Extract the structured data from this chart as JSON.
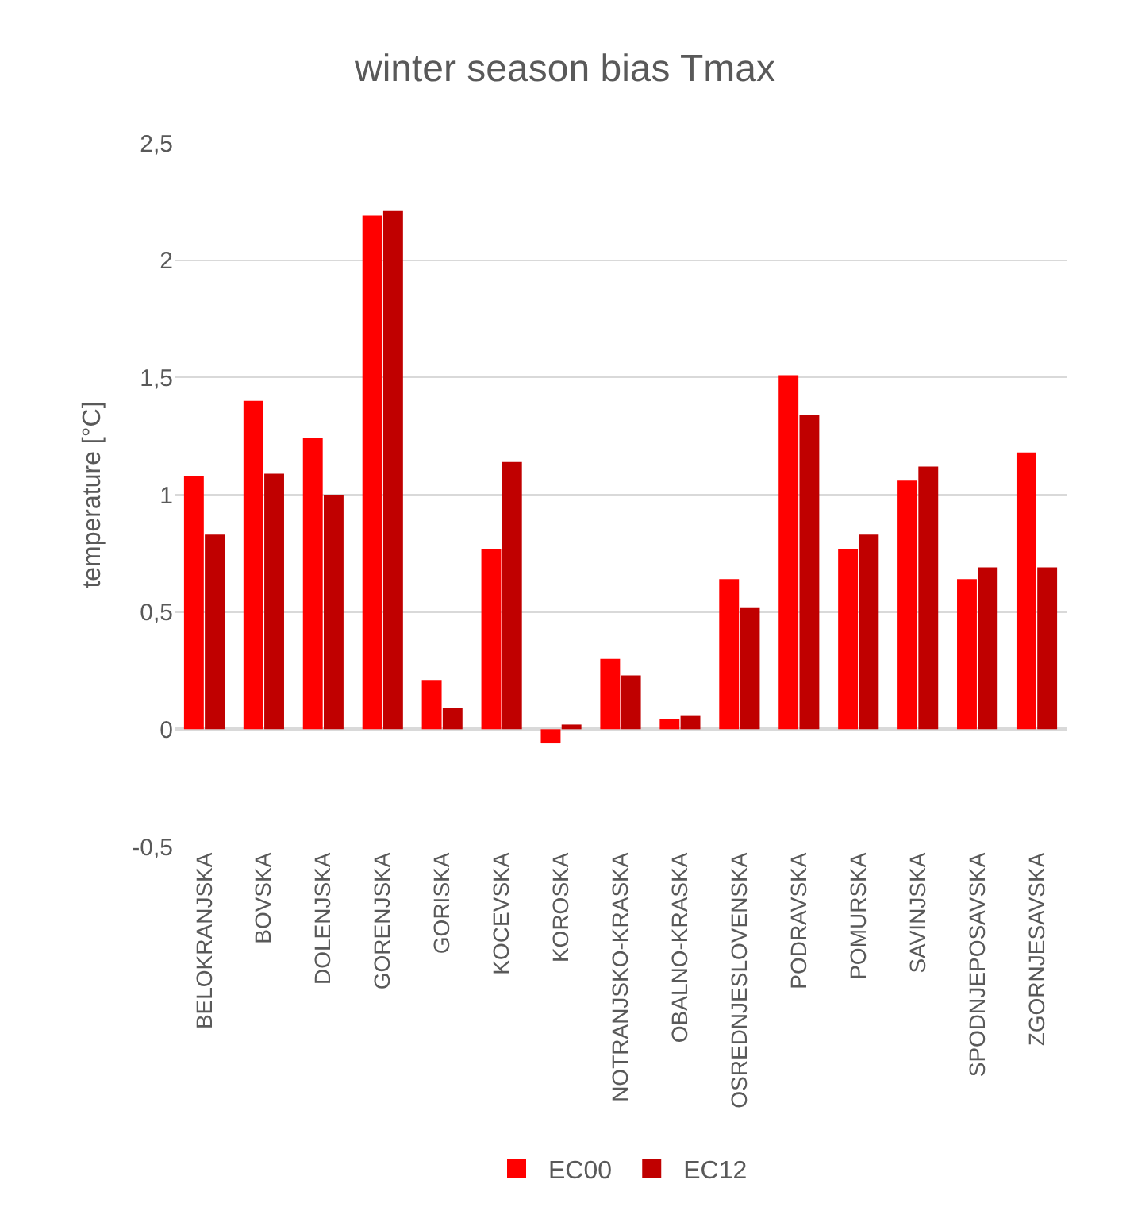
{
  "chart_data": {
    "type": "bar",
    "title": "winter season bias Tmax",
    "ylabel": "temperature [°C]",
    "categories": [
      "BELOKRANJSKA",
      "BOVSKA",
      "DOLENJSKA",
      "GORENJSKA",
      "GORISKA",
      "KOCEVSKA",
      "KOROSKA",
      "NOTRANJSKO-KRASKA",
      "OBALNO-KRASKA",
      "OSREDNJESLOVENSKA",
      "PODRAVSKA",
      "POMURSKA",
      "SAVINJSKA",
      "SPODNJEPOSAVSKA",
      "ZGORNJESAVSKA"
    ],
    "series": [
      {
        "name": "EC00",
        "color": "#ff0000",
        "values": [
          1.08,
          1.4,
          1.24,
          2.19,
          0.21,
          0.77,
          -0.06,
          0.3,
          0.045,
          0.64,
          1.51,
          0.77,
          1.06,
          0.64,
          1.18
        ]
      },
      {
        "name": "EC12",
        "color": "#c00000",
        "values": [
          0.83,
          1.09,
          1.0,
          2.21,
          0.09,
          1.14,
          0.02,
          0.23,
          0.06,
          0.52,
          1.34,
          0.83,
          1.12,
          0.69,
          0.69
        ]
      }
    ],
    "ylim": [
      -0.5,
      2.5
    ],
    "yticks": [
      {
        "value": -0.5,
        "label": "-0,5"
      },
      0,
      {
        "value": 0.5,
        "label": "0,5"
      },
      1,
      {
        "value": 1.5,
        "label": "1,5"
      },
      2,
      {
        "value": 2.5,
        "label": "2,5"
      }
    ],
    "grid": "y",
    "legend": "bottom"
  }
}
